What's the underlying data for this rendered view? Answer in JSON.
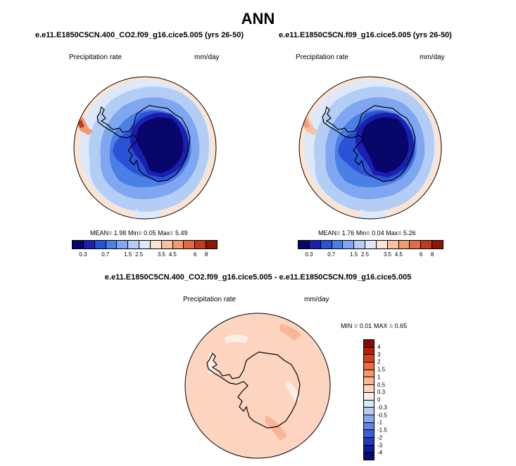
{
  "title": "ANN",
  "panels": [
    {
      "title": "e.e11.E1850C5CN.400_CO2.f09_g16.cice5.005 (yrs 26-50)",
      "variable": "Precipitation rate",
      "units": "mm/day",
      "mean_label": "MEAN=",
      "mean": "1.98",
      "min_label": "Min=",
      "min": "0.05",
      "max_label": "Max=",
      "max": "5.49"
    },
    {
      "title": "e.e11.E1850C5CN.f09_g16.cice5.005 (yrs 26-50)",
      "variable": "Precipitation rate",
      "units": "mm/day",
      "mean_label": "MEAN=",
      "mean": "1.76",
      "min_label": "Min=",
      "min": "0.04",
      "max_label": "Max=",
      "max": "5.26"
    }
  ],
  "diff": {
    "title": "e.e11.E1850C5CN.400_CO2.f09_g16.cice5.005 - e.e11.E1850C5CN.f09_g16.cice5.005",
    "variable": "Precipitation rate",
    "units": "mm/day",
    "min_label": "MIN =",
    "min": "0.01",
    "max_label": "MAX =",
    "max": "0.65"
  },
  "colorbar_abs": {
    "colors": [
      "#08066b",
      "#1a1fb0",
      "#2a52d6",
      "#4a7fe6",
      "#7fa6f0",
      "#b3cdf5",
      "#dde9fa",
      "#fde4d2",
      "#f8c0a0",
      "#f39a72",
      "#e06a43",
      "#c23a1e",
      "#8c1506"
    ],
    "labels": [
      "0.3",
      "0.7",
      "1.5",
      "2.5",
      "3.5",
      "4.5",
      "6",
      "8"
    ]
  },
  "colorbar_diff": {
    "colors": [
      "#8c0a00",
      "#b32208",
      "#d9401a",
      "#ef6a3c",
      "#f6946a",
      "#f9b696",
      "#fcd4bf",
      "#fdeee5",
      "#dae6f7",
      "#b6cbf2",
      "#8aa9eb",
      "#5f86e2",
      "#3c5fd6",
      "#2238bd",
      "#0f1a9a",
      "#050a6e"
    ],
    "labels": [
      "4",
      "3",
      "2",
      "1.5",
      "1",
      "0.5",
      "0.3",
      "0",
      "-0.3",
      "-0.5",
      "-1",
      "-1.5",
      "-2",
      "-3",
      "-4"
    ]
  }
}
